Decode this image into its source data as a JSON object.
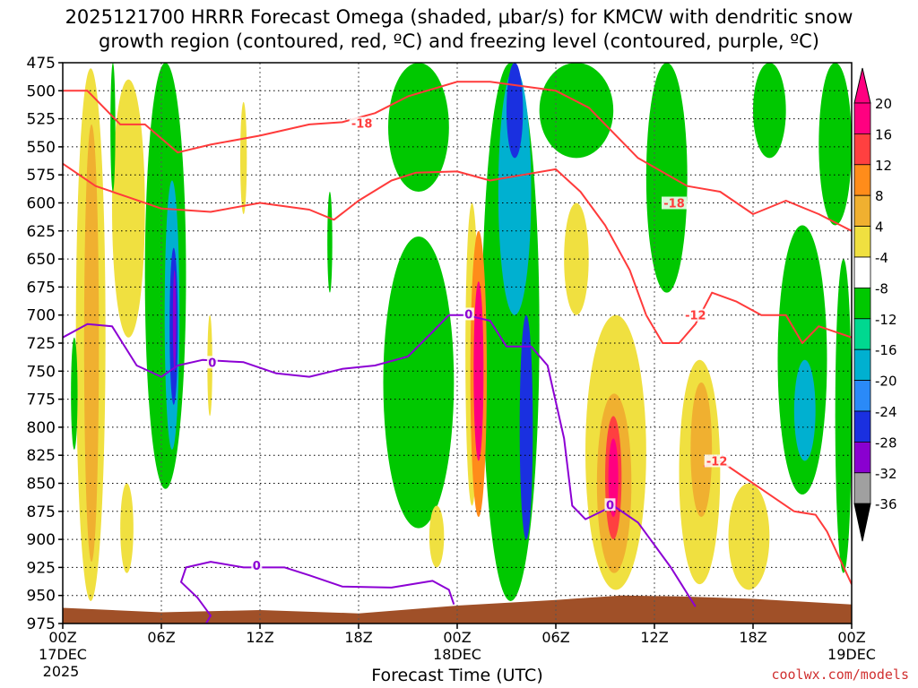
{
  "title_line1": "2025121700 HRRR Forecast Omega (shaded, μbar/s) for KMCW with dendritic snow",
  "title_line2": "growth region (contoured, red, ºC) and freezing level (contoured, purple, ºC)",
  "credit": "coolwx.com/models",
  "chart_data": {
    "type": "heatmap",
    "xlabel": "Forecast Time (UTC)",
    "ylabel": "",
    "xlim": [
      0,
      48
    ],
    "ylim": [
      975,
      475
    ],
    "x_ticks": [
      {
        "x": 0,
        "label": "00Z",
        "sub": "17DEC",
        "sub2": "2025"
      },
      {
        "x": 6,
        "label": "06Z"
      },
      {
        "x": 12,
        "label": "12Z"
      },
      {
        "x": 18,
        "label": "18Z"
      },
      {
        "x": 24,
        "label": "00Z",
        "sub": "18DEC"
      },
      {
        "x": 30,
        "label": "06Z"
      },
      {
        "x": 36,
        "label": "12Z"
      },
      {
        "x": 42,
        "label": "18Z"
      },
      {
        "x": 48,
        "label": "00Z",
        "sub": "19DEC"
      }
    ],
    "y_ticks": [
      475,
      500,
      525,
      550,
      575,
      600,
      625,
      650,
      675,
      700,
      725,
      750,
      775,
      800,
      825,
      850,
      875,
      900,
      925,
      950,
      975
    ],
    "colorbar": {
      "labels": [
        "20",
        "16",
        "12",
        "8",
        "4",
        "-4",
        "-8",
        "-12",
        "-16",
        "-20",
        "-24",
        "-28",
        "-32",
        "-36"
      ],
      "colors": [
        "#ff0080",
        "#ff4040",
        "#ff8c1a",
        "#f0b030",
        "#f0e040",
        "#ffffff",
        "#00c800",
        "#00d890",
        "#00b0d0",
        "#2a8af8",
        "#1a30e0",
        "#8a00d0",
        "#a0a0a0",
        "#000000"
      ]
    },
    "omega_cells": [
      {
        "t": [
          0.8,
          2.6
        ],
        "p": [
          480,
          955
        ],
        "v": 6
      },
      {
        "t": [
          1.3,
          2.2
        ],
        "p": [
          530,
          920
        ],
        "v": 10
      },
      {
        "t": [
          0.5,
          0.9
        ],
        "p": [
          720,
          820
        ],
        "v": -6
      },
      {
        "t": [
          3.5,
          4.3
        ],
        "p": [
          850,
          930
        ],
        "v": 5
      },
      {
        "t": [
          3.0,
          5.0
        ],
        "p": [
          490,
          720
        ],
        "v": 5
      },
      {
        "t": [
          2.9,
          3.2
        ],
        "p": [
          475,
          590
        ],
        "v": -6
      },
      {
        "t": [
          5.0,
          7.5
        ],
        "p": [
          475,
          855
        ],
        "v": -6
      },
      {
        "t": [
          6.2,
          7.1
        ],
        "p": [
          580,
          820
        ],
        "v": -12
      },
      {
        "t": [
          6.5,
          7.0
        ],
        "p": [
          640,
          780
        ],
        "v": -20
      },
      {
        "t": [
          6.7,
          6.9
        ],
        "p": [
          660,
          750
        ],
        "v": -26
      },
      {
        "t": [
          8.8,
          9.1
        ],
        "p": [
          700,
          790
        ],
        "v": 5
      },
      {
        "t": [
          10.8,
          11.2
        ],
        "p": [
          510,
          610
        ],
        "v": 5
      },
      {
        "t": [
          16.1,
          16.4
        ],
        "p": [
          590,
          680
        ],
        "v": -6
      },
      {
        "t": [
          19.8,
          23.5
        ],
        "p": [
          475,
          590
        ],
        "v": -6
      },
      {
        "t": [
          19.5,
          23.8
        ],
        "p": [
          630,
          890
        ],
        "v": -6
      },
      {
        "t": [
          22.3,
          23.2
        ],
        "p": [
          870,
          925
        ],
        "v": 5
      },
      {
        "t": [
          24.5,
          25.3
        ],
        "p": [
          600,
          870
        ],
        "v": 5
      },
      {
        "t": [
          25.5,
          29.0
        ],
        "p": [
          475,
          955
        ],
        "v": -6
      },
      {
        "t": [
          26.5,
          28.5
        ],
        "p": [
          480,
          700
        ],
        "v": -12
      },
      {
        "t": [
          27.0,
          28.0
        ],
        "p": [
          475,
          560
        ],
        "v": -20
      },
      {
        "t": [
          24.8,
          25.8
        ],
        "p": [
          625,
          880
        ],
        "v": 14
      },
      {
        "t": [
          25.0,
          25.6
        ],
        "p": [
          670,
          830
        ],
        "v": 20
      },
      {
        "t": [
          27.8,
          28.6
        ],
        "p": [
          700,
          900
        ],
        "v": -20
      },
      {
        "t": [
          29.0,
          33.5
        ],
        "p": [
          475,
          560
        ],
        "v": -6
      },
      {
        "t": [
          30.5,
          32.0
        ],
        "p": [
          600,
          700
        ],
        "v": 5
      },
      {
        "t": [
          31.8,
          35.5
        ],
        "p": [
          700,
          945
        ],
        "v": 5
      },
      {
        "t": [
          32.5,
          34.6
        ],
        "p": [
          770,
          930
        ],
        "v": 11
      },
      {
        "t": [
          33.0,
          34.0
        ],
        "p": [
          790,
          900
        ],
        "v": 16
      },
      {
        "t": [
          33.2,
          33.8
        ],
        "p": [
          810,
          880
        ],
        "v": 20
      },
      {
        "t": [
          35.5,
          38.0
        ],
        "p": [
          475,
          680
        ],
        "v": -6
      },
      {
        "t": [
          37.5,
          40.0
        ],
        "p": [
          740,
          940
        ],
        "v": 5
      },
      {
        "t": [
          38.2,
          39.5
        ],
        "p": [
          760,
          880
        ],
        "v": 10
      },
      {
        "t": [
          40.5,
          43.0
        ],
        "p": [
          850,
          945
        ],
        "v": 5
      },
      {
        "t": [
          42.0,
          44.0
        ],
        "p": [
          475,
          560
        ],
        "v": -6
      },
      {
        "t": [
          43.5,
          46.5
        ],
        "p": [
          620,
          860
        ],
        "v": -6
      },
      {
        "t": [
          44.5,
          45.8
        ],
        "p": [
          740,
          830
        ],
        "v": -12
      },
      {
        "t": [
          46.0,
          48.0
        ],
        "p": [
          475,
          620
        ],
        "v": -6
      },
      {
        "t": [
          47.0,
          48.0
        ],
        "p": [
          650,
          930
        ],
        "v": -6
      }
    ],
    "dgz_lines": [
      {
        "points": [
          [
            0,
            500
          ],
          [
            1.5,
            500
          ],
          [
            3.5,
            530
          ],
          [
            5,
            530
          ],
          [
            7,
            555
          ],
          [
            9,
            548
          ],
          [
            12,
            540
          ],
          [
            15,
            530
          ],
          [
            17,
            528
          ],
          [
            19,
            520
          ],
          [
            21,
            505
          ],
          [
            24,
            492
          ],
          [
            26,
            492
          ],
          [
            28,
            496
          ],
          [
            30,
            500
          ],
          [
            32,
            515
          ],
          [
            35,
            560
          ],
          [
            38,
            585
          ],
          [
            40,
            590
          ],
          [
            42,
            610
          ],
          [
            44,
            598
          ],
          [
            46,
            610
          ],
          [
            48,
            625
          ]
        ],
        "labels": [
          {
            "x": 18.2,
            "p": 529,
            "text": "-18"
          },
          {
            "x": 37.2,
            "p": 600,
            "text": "-18"
          }
        ]
      },
      {
        "points": [
          [
            0,
            565
          ],
          [
            2,
            585
          ],
          [
            4,
            595
          ],
          [
            6,
            605
          ],
          [
            9,
            608
          ],
          [
            12,
            600
          ],
          [
            15,
            606
          ],
          [
            16.5,
            615
          ],
          [
            18,
            598
          ],
          [
            20,
            580
          ],
          [
            21.5,
            573
          ],
          [
            24,
            572
          ],
          [
            26,
            580
          ],
          [
            28,
            575
          ],
          [
            30,
            570
          ],
          [
            31.5,
            590
          ],
          [
            33,
            620
          ],
          [
            34.5,
            660
          ],
          [
            35.5,
            700
          ],
          [
            36.5,
            725
          ],
          [
            37.5,
            725
          ],
          [
            38.5,
            708
          ],
          [
            39.5,
            680
          ],
          [
            41,
            688
          ],
          [
            42.5,
            700
          ],
          [
            44,
            700
          ],
          [
            45,
            725
          ],
          [
            46,
            710
          ],
          [
            48,
            720
          ]
        ],
        "labels": [
          {
            "x": 38.5,
            "p": 700,
            "text": "-12"
          }
        ]
      },
      {
        "points": [
          [
            39,
            835
          ],
          [
            40,
            830
          ],
          [
            41,
            840
          ],
          [
            42.5,
            855
          ],
          [
            44.5,
            875
          ],
          [
            45.8,
            878
          ],
          [
            46.5,
            893
          ],
          [
            48,
            940
          ]
        ],
        "labels": [
          {
            "x": 39.8,
            "p": 830,
            "text": "-12"
          }
        ]
      }
    ],
    "freezing_lines": [
      {
        "points": [
          [
            0,
            720
          ],
          [
            1.5,
            708
          ],
          [
            3,
            710
          ],
          [
            4.5,
            745
          ],
          [
            6,
            755
          ],
          [
            7,
            745
          ],
          [
            8.5,
            740
          ],
          [
            11,
            742
          ],
          [
            13,
            752
          ],
          [
            15,
            755
          ],
          [
            17,
            748
          ],
          [
            19,
            745
          ],
          [
            21,
            737
          ],
          [
            22.5,
            715
          ],
          [
            23.5,
            700
          ],
          [
            24.5,
            700
          ],
          [
            26,
            705
          ],
          [
            27,
            728
          ],
          [
            28.5,
            728
          ],
          [
            29.5,
            745
          ],
          [
            30.5,
            810
          ],
          [
            31,
            870
          ],
          [
            31.8,
            882
          ],
          [
            33.5,
            870
          ],
          [
            35,
            885
          ],
          [
            37,
            925
          ],
          [
            38.5,
            960
          ]
        ],
        "labels": [
          {
            "x": 24.7,
            "p": 699,
            "text": "0"
          },
          {
            "x": 33.3,
            "p": 869,
            "text": "0"
          },
          {
            "x": 9.1,
            "p": 742,
            "text": "0"
          }
        ]
      },
      {
        "points": [
          [
            8.6,
            978
          ],
          [
            9,
            968
          ],
          [
            8.2,
            952
          ],
          [
            7.2,
            938
          ],
          [
            7.5,
            925
          ],
          [
            9,
            920
          ],
          [
            11,
            925
          ],
          [
            12.5,
            925
          ],
          [
            13.5,
            925
          ],
          [
            15,
            932
          ],
          [
            17,
            942
          ],
          [
            20,
            943
          ],
          [
            22.5,
            937
          ],
          [
            23.5,
            945
          ],
          [
            23.8,
            958
          ]
        ],
        "labels": [
          {
            "x": 11.8,
            "p": 923,
            "text": "0"
          }
        ]
      }
    ],
    "terrain": {
      "points": [
        [
          0,
          961
        ],
        [
          6,
          965
        ],
        [
          12,
          963
        ],
        [
          18,
          966
        ],
        [
          24,
          959
        ],
        [
          30,
          954
        ],
        [
          34,
          950
        ],
        [
          38,
          951
        ],
        [
          42,
          953
        ],
        [
          48,
          958
        ]
      ],
      "color": "#a05028"
    }
  }
}
